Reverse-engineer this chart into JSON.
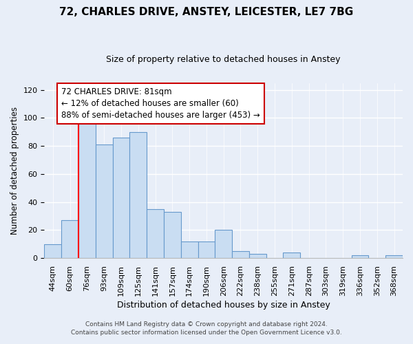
{
  "title1": "72, CHARLES DRIVE, ANSTEY, LEICESTER, LE7 7BG",
  "title2": "Size of property relative to detached houses in Anstey",
  "xlabel": "Distribution of detached houses by size in Anstey",
  "ylabel": "Number of detached properties",
  "categories": [
    "44sqm",
    "60sqm",
    "76sqm",
    "93sqm",
    "109sqm",
    "125sqm",
    "141sqm",
    "157sqm",
    "174sqm",
    "190sqm",
    "206sqm",
    "222sqm",
    "238sqm",
    "255sqm",
    "271sqm",
    "287sqm",
    "303sqm",
    "319sqm",
    "336sqm",
    "352sqm",
    "368sqm"
  ],
  "values": [
    10,
    27,
    98,
    81,
    86,
    90,
    35,
    33,
    12,
    12,
    20,
    5,
    3,
    0,
    4,
    0,
    0,
    0,
    2,
    0,
    2
  ],
  "bar_color": "#c9ddf2",
  "bar_edge_color": "#6699cc",
  "red_line_index": 2,
  "ylim": [
    0,
    125
  ],
  "yticks": [
    0,
    20,
    40,
    60,
    80,
    100,
    120
  ],
  "annotation_title": "72 CHARLES DRIVE: 81sqm",
  "annotation_line1": "← 12% of detached houses are smaller (60)",
  "annotation_line2": "88% of semi-detached houses are larger (453) →",
  "annotation_box_facecolor": "#ffffff",
  "annotation_box_edgecolor": "#cc0000",
  "footer1": "Contains HM Land Registry data © Crown copyright and database right 2024.",
  "footer2": "Contains public sector information licensed under the Open Government Licence v3.0.",
  "background_color": "#e8eef8",
  "plot_bg_color": "#e8eef8",
  "grid_color": "#ffffff",
  "title1_fontsize": 11,
  "title2_fontsize": 9,
  "ylabel_fontsize": 8.5,
  "xlabel_fontsize": 9,
  "tick_fontsize": 8,
  "annotation_fontsize": 8.5,
  "footer_fontsize": 6.5
}
